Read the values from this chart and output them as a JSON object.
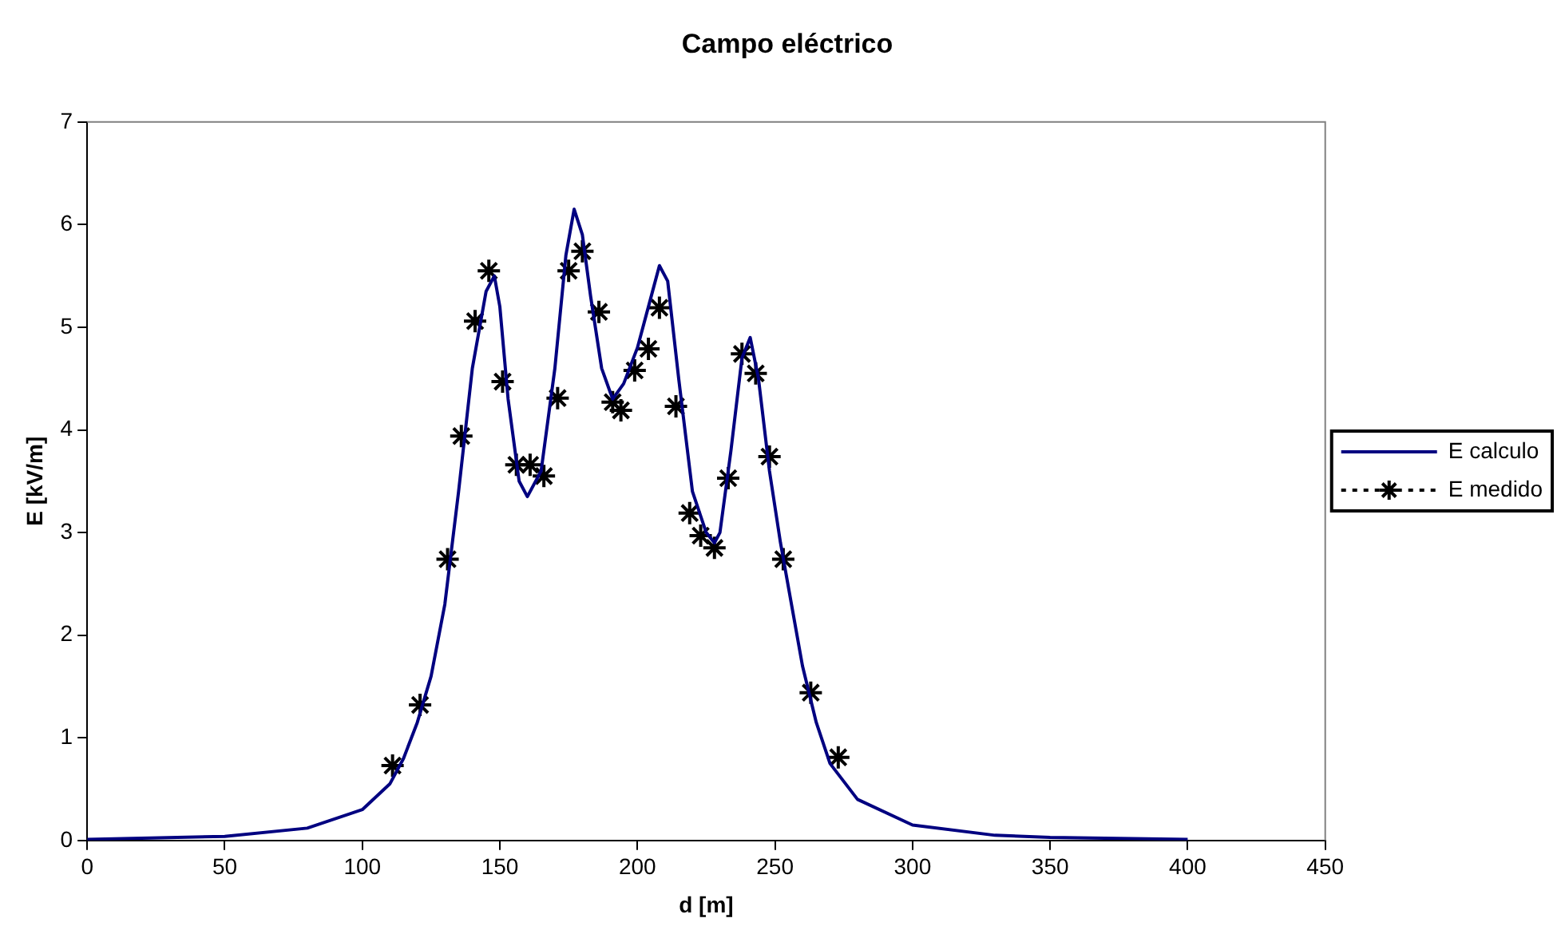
{
  "chart_data": {
    "type": "line",
    "title": "Campo eléctrico",
    "xlabel": "d [m]",
    "ylabel": "E [kV/m]",
    "xlim": [
      0,
      450
    ],
    "xticks": [
      0,
      50,
      100,
      150,
      200,
      250,
      300,
      350,
      400,
      450
    ],
    "ylim": [
      0,
      7
    ],
    "yticks": [
      0,
      1,
      2,
      3,
      4,
      5,
      6,
      7
    ],
    "grid": false,
    "legend": "right",
    "series": [
      {
        "name": "E calculo",
        "color": "#000080",
        "marker": "none",
        "line_style": "solid",
        "x": [
          0,
          50,
          80,
          100,
          110,
          115,
          120,
          125,
          130,
          135,
          140,
          145,
          148,
          150,
          153,
          157,
          160,
          165,
          170,
          174,
          177,
          180,
          183,
          187,
          191,
          195,
          200,
          205,
          208,
          211,
          215,
          220,
          225,
          228,
          230,
          234,
          238,
          241,
          244,
          248,
          252,
          256,
          260,
          265,
          270,
          280,
          300,
          330,
          350,
          400
        ],
        "values": [
          0.01,
          0.04,
          0.12,
          0.3,
          0.55,
          0.8,
          1.15,
          1.6,
          2.3,
          3.4,
          4.6,
          5.35,
          5.5,
          5.2,
          4.3,
          3.5,
          3.35,
          3.6,
          4.6,
          5.7,
          6.15,
          5.9,
          5.3,
          4.6,
          4.3,
          4.45,
          4.8,
          5.3,
          5.6,
          5.45,
          4.5,
          3.4,
          3.0,
          2.9,
          3.0,
          3.8,
          4.7,
          4.9,
          4.5,
          3.6,
          2.9,
          2.3,
          1.7,
          1.15,
          0.75,
          0.4,
          0.15,
          0.05,
          0.03,
          0.01
        ]
      },
      {
        "name": "E medido",
        "type": "scatter",
        "color": "#000000",
        "marker": "cross",
        "line_style": "dotted",
        "x": [
          111,
          121,
          131,
          136,
          141,
          146,
          151,
          156,
          161,
          166,
          171,
          175,
          180,
          186,
          191,
          194,
          199,
          204,
          208,
          214,
          219,
          223,
          228,
          233,
          238,
          243,
          248,
          253,
          263,
          273
        ],
        "values": [
          0.73,
          1.32,
          2.74,
          3.94,
          5.06,
          5.55,
          4.47,
          3.66,
          3.66,
          3.55,
          4.31,
          5.55,
          5.74,
          5.15,
          4.27,
          4.19,
          4.58,
          4.79,
          5.19,
          4.23,
          3.19,
          2.97,
          2.85,
          3.53,
          4.74,
          4.55,
          3.74,
          2.74,
          1.44,
          0.81
        ]
      }
    ]
  }
}
